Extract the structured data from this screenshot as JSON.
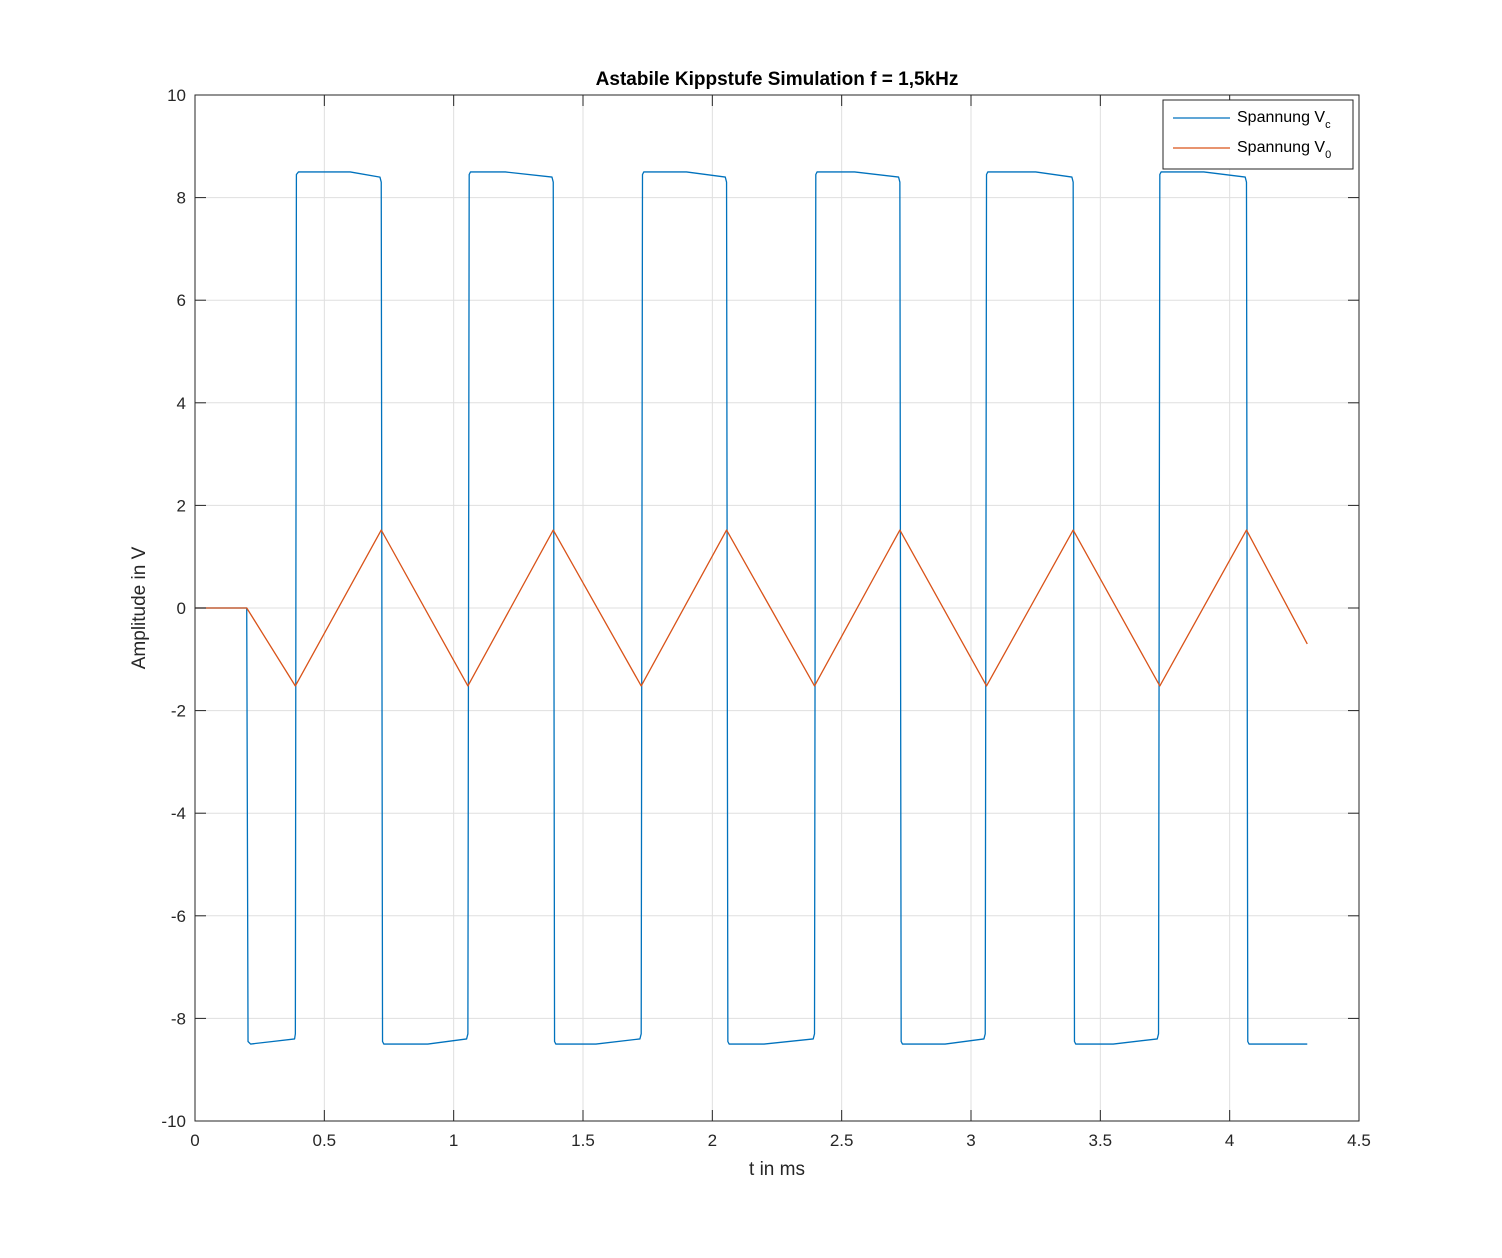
{
  "chart_data": {
    "type": "line",
    "title": "Astabile Kippstufe Simulation f = 1,5kHz",
    "xlabel": "t in ms",
    "ylabel": "Amplitude in V",
    "xlim": [
      0,
      4.5
    ],
    "ylim": [
      -10,
      10
    ],
    "xticks": [
      0,
      0.5,
      1,
      1.5,
      2,
      2.5,
      3,
      3.5,
      4,
      4.5
    ],
    "xtick_labels": [
      "0",
      "0.5",
      "1",
      "1.5",
      "2",
      "2.5",
      "3",
      "3.5",
      "4",
      "4.5"
    ],
    "yticks": [
      -10,
      -8,
      -6,
      -4,
      -2,
      0,
      2,
      4,
      6,
      8,
      10
    ],
    "ytick_labels": [
      "-10",
      "-8",
      "-6",
      "-4",
      "-2",
      "0",
      "2",
      "4",
      "6",
      "8",
      "10"
    ],
    "grid": true,
    "legend_position": "top-right",
    "series": [
      {
        "name": "Spannung V",
        "name_subscript": "c",
        "color": "#0072BD",
        "x": [
          0,
          0.2,
          0.205,
          0.215,
          0.3,
          0.385,
          0.388,
          0.392,
          0.4,
          0.5,
          0.6,
          0.715,
          0.72,
          0.725,
          0.73,
          0.74,
          0.9,
          1.05,
          1.055,
          1.06,
          1.065,
          1.07,
          1.2,
          1.38,
          1.385,
          1.39,
          1.395,
          1.405,
          1.55,
          1.72,
          1.725,
          1.73,
          1.735,
          1.74,
          1.9,
          2.05,
          2.055,
          2.06,
          2.065,
          2.075,
          2.2,
          2.39,
          2.395,
          2.4,
          2.405,
          2.41,
          2.55,
          2.72,
          2.725,
          2.73,
          2.735,
          2.745,
          2.9,
          3.05,
          3.055,
          3.06,
          3.065,
          3.07,
          3.25,
          3.39,
          3.395,
          3.4,
          3.405,
          3.415,
          3.55,
          3.72,
          3.725,
          3.73,
          3.735,
          3.74,
          3.9,
          4.06,
          4.065,
          4.07,
          4.075,
          4.085,
          4.3
        ],
        "y": [
          0,
          0,
          -8.45,
          -8.5,
          -8.45,
          -8.4,
          -8.3,
          8.45,
          8.5,
          8.5,
          8.5,
          8.4,
          8.3,
          -8.45,
          -8.5,
          -8.5,
          -8.5,
          -8.4,
          -8.3,
          8.45,
          8.5,
          8.5,
          8.5,
          8.4,
          8.3,
          -8.45,
          -8.5,
          -8.5,
          -8.5,
          -8.4,
          -8.3,
          8.45,
          8.5,
          8.5,
          8.5,
          8.4,
          8.3,
          -8.45,
          -8.5,
          -8.5,
          -8.5,
          -8.4,
          -8.3,
          8.45,
          8.5,
          8.5,
          8.5,
          8.4,
          8.3,
          -8.45,
          -8.5,
          -8.5,
          -8.5,
          -8.4,
          -8.3,
          8.45,
          8.5,
          8.5,
          8.5,
          8.4,
          8.3,
          -8.45,
          -8.5,
          -8.5,
          -8.5,
          -8.4,
          -8.3,
          8.45,
          8.5,
          8.5,
          8.5,
          8.4,
          8.3,
          -8.45,
          -8.5,
          -8.5,
          -8.5
        ]
      },
      {
        "name": "Spannung V",
        "name_subscript": "0",
        "color": "#D95319",
        "x": [
          0,
          0.2,
          0.388,
          0.72,
          1.055,
          1.385,
          1.725,
          2.055,
          2.395,
          2.725,
          3.06,
          3.395,
          3.73,
          4.065,
          4.3
        ],
        "y": [
          0,
          0,
          -1.52,
          1.52,
          -1.52,
          1.52,
          -1.52,
          1.52,
          -1.52,
          1.52,
          -1.52,
          1.52,
          -1.52,
          1.52,
          -0.7
        ]
      }
    ]
  }
}
